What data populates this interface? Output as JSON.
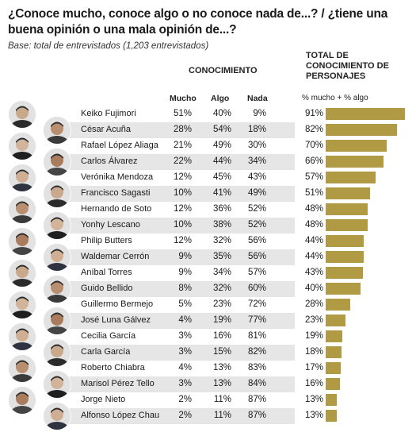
{
  "title": "¿Conoce mucho, conoce algo o no conoce nada de...? / ¿tiene una buena opinión o una mala opinión de...?",
  "subtitle": "Base: total de entrevistados (1,203 entrevistados)",
  "headers": {
    "conocimiento": "CONOCIMIENTO",
    "mucho": "Mucho",
    "algo": "Algo",
    "nada": "Nada",
    "total_line1": "TOTAL DE",
    "total_line2": "CONOCIMIENTO DE",
    "total_line3": "PERSONAJES",
    "pct_label": "% mucho + % algo"
  },
  "chart_data": {
    "type": "bar",
    "orientation": "horizontal",
    "categories": [
      "Keiko Fujimori",
      "César Acuña",
      "Rafael López Aliaga",
      "Carlos Álvarez",
      "Verónika Mendoza",
      "Francisco Sagasti",
      "Hernando de Soto",
      "Yonhy Lescano",
      "Philip Butters",
      "Waldemar Cerrón",
      "Aníbal Torres",
      "Guido Bellido",
      "Guillermo Bermejo",
      "José Luna Gálvez",
      "Cecilia García",
      "Carla García",
      "Roberto Chiabra",
      "Marisol Pérez Tello",
      "Jorge Nieto",
      "Alfonso López Chau"
    ],
    "mucho": [
      "51%",
      "28%",
      "21%",
      "22%",
      "12%",
      "10%",
      "12%",
      "10%",
      "12%",
      "9%",
      "9%",
      "8%",
      "5%",
      "4%",
      "3%",
      "3%",
      "4%",
      "3%",
      "2%",
      "2%"
    ],
    "algo": [
      "40%",
      "54%",
      "49%",
      "44%",
      "45%",
      "41%",
      "36%",
      "38%",
      "32%",
      "35%",
      "34%",
      "32%",
      "23%",
      "19%",
      "16%",
      "15%",
      "13%",
      "13%",
      "11%",
      "11%"
    ],
    "nada": [
      "9%",
      "18%",
      "30%",
      "34%",
      "43%",
      "49%",
      "52%",
      "52%",
      "56%",
      "56%",
      "57%",
      "60%",
      "72%",
      "77%",
      "81%",
      "82%",
      "83%",
      "84%",
      "87%",
      "87%"
    ],
    "total_labels": [
      "91%",
      "82%",
      "70%",
      "66%",
      "57%",
      "51%",
      "48%",
      "48%",
      "44%",
      "44%",
      "43%",
      "40%",
      "28%",
      "23%",
      "19%",
      "18%",
      "17%",
      "16%",
      "13%",
      "13%"
    ],
    "values": [
      91,
      82,
      70,
      66,
      57,
      51,
      48,
      48,
      44,
      44,
      43,
      40,
      28,
      23,
      19,
      18,
      17,
      16,
      13,
      13
    ],
    "xlim": [
      0,
      91
    ],
    "bar_color": "#b09a43"
  }
}
